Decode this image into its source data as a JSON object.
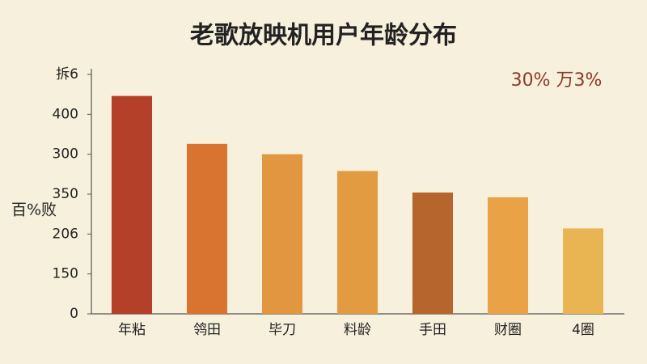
{
  "chart_data": {
    "type": "bar",
    "title": "老歌放映机用户年龄分布",
    "annotation": "30% 万3%",
    "y_label": "百%败",
    "categories": [
      "年粘",
      "鸰田",
      "毕刀",
      "料龄",
      "手田",
      "财圈",
      "4圈"
    ],
    "values": [
      273,
      213,
      200,
      179,
      152,
      146,
      107
    ],
    "colors": [
      "#b5402a",
      "#d8742f",
      "#e2963f",
      "#e39b42",
      "#b6652c",
      "#e9a246",
      "#e9b552"
    ],
    "ylim": [
      0,
      300
    ],
    "yticks": [
      0,
      {
        "value": 50,
        "label": "150"
      },
      {
        "value": 100,
        "label": "206"
      },
      {
        "value": 150,
        "label": "350"
      },
      {
        "value": 200,
        "label": "300"
      },
      {
        "value": 250,
        "label": "400"
      },
      {
        "value": 300,
        "label": "拆6"
      }
    ],
    "grid": false
  }
}
